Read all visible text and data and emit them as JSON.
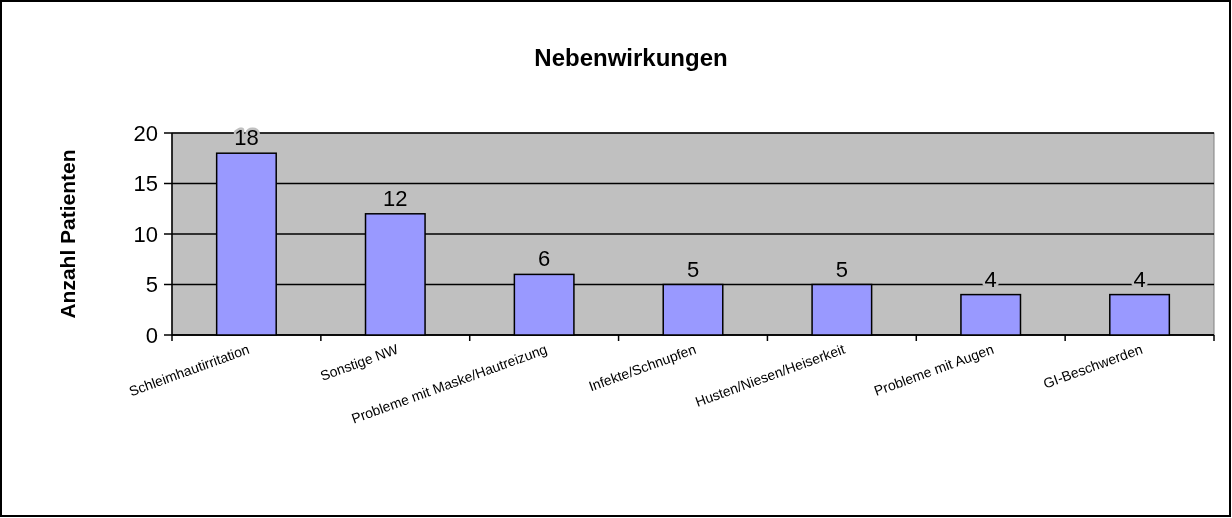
{
  "chart_data": {
    "type": "bar",
    "title": "Nebenwirkungen",
    "ylabel": "Anzahl Patienten",
    "categories": [
      "Schleimhautirritation",
      "Sonstige NW",
      "Probleme mit Maske/Hautreizung",
      "Infekte/Schnupfen",
      "Husten/Niesen/Heiserkeit",
      "Probleme mit Augen",
      "GI-Beschwerden"
    ],
    "values": [
      18,
      12,
      6,
      5,
      5,
      4,
      4
    ],
    "color": "#9999ff",
    "data_labels": true,
    "ylim": [
      0,
      20
    ],
    "yticks": [
      0,
      5,
      10,
      15,
      20
    ],
    "grid": "y"
  }
}
